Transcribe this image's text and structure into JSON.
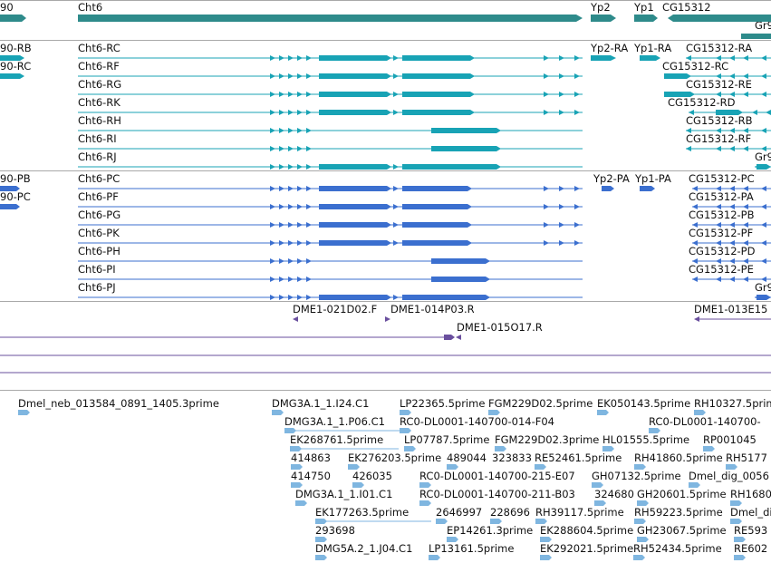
{
  "colors": {
    "gene": "#2e8b8b",
    "rna": "#18a3b5",
    "protein": "#3b6fcf",
    "clone": "#6a4f9e",
    "est": "#7fb6e0",
    "separator": "#a9a9a9"
  },
  "genes": [
    {
      "label": "90"
    },
    {
      "label": "Cht6"
    },
    {
      "label": "Yp2"
    },
    {
      "label": "Yp1"
    },
    {
      "label": "CG15312"
    },
    {
      "label": "Gr9"
    }
  ],
  "rna_left": [
    "90-RB",
    "90-RC"
  ],
  "cht6_rna": [
    "Cht6-RC",
    "Cht6-RF",
    "Cht6-RG",
    "Cht6-RK",
    "Cht6-RH",
    "Cht6-RI",
    "Cht6-RJ"
  ],
  "yp_rna": [
    "Yp2-RA",
    "Yp1-RA"
  ],
  "cg_rna": [
    "CG15312-RA",
    "CG15312-RC",
    "CG15312-RE",
    "CG15312-RD",
    "CG15312-RB",
    "CG15312-RF",
    "Gr9"
  ],
  "protein_left": [
    "90-PB",
    "90-PC"
  ],
  "cht6_protein": [
    "Cht6-PC",
    "Cht6-PF",
    "Cht6-PG",
    "Cht6-PK",
    "Cht6-PH",
    "Cht6-PI",
    "Cht6-PJ"
  ],
  "yp_protein": [
    "Yp2-PA",
    "Yp1-PA"
  ],
  "cg_protein": [
    "CG15312-PC",
    "CG15312-PA",
    "CG15312-PB",
    "CG15312-PF",
    "CG15312-PD",
    "CG15312-PE",
    "Gr9"
  ],
  "clones": [
    "DME1-021D02.F",
    "DME1-014P03.R",
    "DME1-015O17.R",
    "DME1-013E15"
  ],
  "est_labels": [
    "Dmel_neb_013584_0891_1405.3prime",
    "DMG3A.1_1.I24.C1",
    "LP22365.5prime",
    "FGM229D02.5prime",
    "EK050143.5prime",
    "RH10327.5prime",
    "DMG3A.1_1.P06.C1",
    "RC0-DL0001-140700-014-F04",
    "RC0-DL0001-140700-",
    "EK268761.5prime",
    "LP07787.5prime",
    "FGM229D02.3prime",
    "HL01555.5prime",
    "RP001045",
    "414863",
    "EK276203.5prime",
    "489044",
    "323833",
    "RE52461.5prime",
    "RH41860.5prime",
    "RH5177",
    "414750",
    "426035",
    "RC0-DL0001-140700-215-E07",
    "GH07132.5prime",
    "Dmel_dig_0056",
    "DMG3A.1_1.I01.C1",
    "RC0-DL0001-140700-211-B03",
    "324680",
    "GH20601.5prime",
    "RH1680",
    "EK177263.5prime",
    "2646997",
    "228696",
    "RH39117.5prime",
    "RH59223.5prime",
    "Dmel_di",
    "293698",
    "EP14261.3prime",
    "EK288604.5prime",
    "GH23067.5prime",
    "RE593",
    "DMG5A.2_1.J04.C1",
    "LP13161.5prime",
    "EK292021.5prime",
    "RH52434.5prime",
    "RE602"
  ]
}
